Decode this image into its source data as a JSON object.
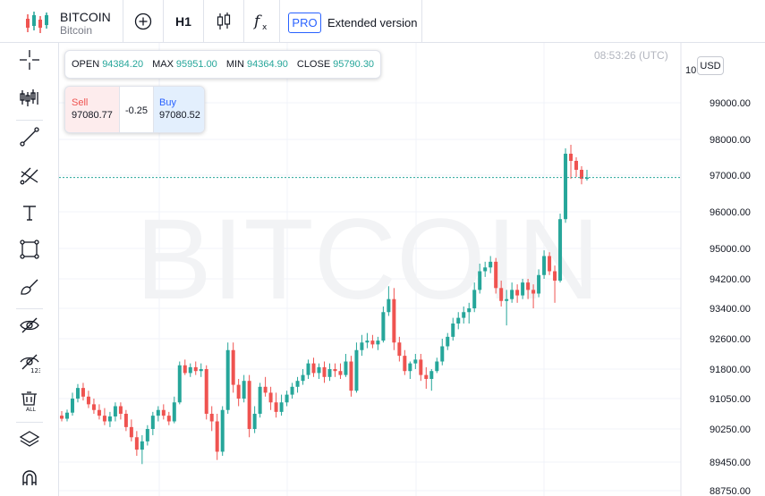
{
  "header": {
    "symbol_name": "BITCOIN",
    "symbol_desc": "Bitcoin",
    "interval": "H1",
    "pro_badge": "PRO",
    "extended_label": "Extended version"
  },
  "toolbar_icons": [
    "crosshair-icon",
    "indicators-icon",
    "trend-line-icon",
    "fib-retracement-icon",
    "text-icon",
    "rectangle-icon",
    "brush-icon",
    "hide-drawings-icon",
    "hide-indicators-icon",
    "remove-all-icon",
    "layers-icon",
    "magnet-icon"
  ],
  "ohlc": {
    "open_label": "OPEN",
    "open": "94384.20",
    "max_label": "MAX",
    "max": "95951.00",
    "min_label": "MIN",
    "min": "94364.90",
    "close_label": "CLOSE",
    "close": "95790.30"
  },
  "trade": {
    "sell_label": "Sell",
    "sell_price": "97080.77",
    "spread": "-0.25",
    "buy_label": "Buy",
    "buy_price": "97080.52"
  },
  "clock": "08:53:26 (UTC)",
  "currency": "USD",
  "watermark": "BITCOIN",
  "colors": {
    "up": "#26a69a",
    "down": "#ef5350",
    "price_line": "#26a69a",
    "grid": "#f0f3fa",
    "accent": "#2962ff"
  },
  "chart_data": {
    "type": "candlestick",
    "y_tick_labels": [
      "99000.00",
      "98000.00",
      "97000.00",
      "96000.00",
      "95000.00",
      "94200.00",
      "93400.00",
      "92600.00",
      "91800.00",
      "91050.00",
      "90250.00",
      "89450.00",
      "88750.00"
    ],
    "y_tick_values": [
      99000,
      98000,
      97000,
      96000,
      95000,
      94200,
      93400,
      92600,
      91800,
      91050,
      90250,
      89450,
      88750
    ],
    "partial_top_label": "10",
    "current_price": 96935,
    "candles": [
      [
        90600,
        90720,
        90450,
        90520
      ],
      [
        90520,
        90760,
        90450,
        90680
      ],
      [
        90680,
        91200,
        90600,
        91050
      ],
      [
        91050,
        91420,
        90950,
        91320
      ],
      [
        91320,
        91450,
        91000,
        91100
      ],
      [
        91100,
        91250,
        90800,
        90900
      ],
      [
        90900,
        91050,
        90650,
        90750
      ],
      [
        90750,
        90900,
        90500,
        90600
      ],
      [
        90600,
        90800,
        90350,
        90450
      ],
      [
        90450,
        90700,
        90300,
        90580
      ],
      [
        90580,
        90950,
        90450,
        90850
      ],
      [
        90850,
        90950,
        90500,
        90650
      ],
      [
        90650,
        90750,
        90200,
        90300
      ],
      [
        90300,
        90500,
        89950,
        90050
      ],
      [
        90050,
        90200,
        89600,
        89750
      ],
      [
        89750,
        90100,
        89400,
        89950
      ],
      [
        89950,
        90350,
        89850,
        90250
      ],
      [
        90250,
        90700,
        90100,
        90600
      ],
      [
        90600,
        90850,
        90450,
        90750
      ],
      [
        90750,
        90900,
        90500,
        90600
      ],
      [
        90600,
        90700,
        90350,
        90450
      ],
      [
        90450,
        91100,
        90400,
        90950
      ],
      [
        90950,
        92000,
        90900,
        91900
      ],
      [
        91900,
        92050,
        91650,
        91700
      ],
      [
        91700,
        91950,
        91600,
        91850
      ],
      [
        91850,
        92000,
        91650,
        91750
      ],
      [
        91750,
        91950,
        91600,
        91800
      ],
      [
        91800,
        91900,
        90500,
        90650
      ],
      [
        90650,
        90850,
        90200,
        90450
      ],
      [
        90450,
        90650,
        89500,
        89700
      ],
      [
        89700,
        90850,
        89600,
        90750
      ],
      [
        90750,
        92500,
        90650,
        92300
      ],
      [
        92300,
        92500,
        91200,
        91400
      ],
      [
        91400,
        91550,
        90850,
        91050
      ],
      [
        91050,
        91650,
        90950,
        91500
      ],
      [
        91500,
        91650,
        90050,
        90250
      ],
      [
        90250,
        90850,
        90150,
        90650
      ],
      [
        90650,
        91450,
        90550,
        91350
      ],
      [
        91350,
        91600,
        91100,
        91200
      ],
      [
        91200,
        91350,
        90750,
        90950
      ],
      [
        90950,
        91200,
        90550,
        90700
      ],
      [
        90700,
        91150,
        90600,
        90950
      ],
      [
        90950,
        91250,
        90850,
        91150
      ],
      [
        91150,
        91450,
        91050,
        91350
      ],
      [
        91350,
        91600,
        91200,
        91500
      ],
      [
        91500,
        91800,
        91400,
        91650
      ],
      [
        91650,
        92050,
        91550,
        91950
      ],
      [
        91950,
        92100,
        91600,
        91700
      ],
      [
        91700,
        91950,
        91550,
        91850
      ],
      [
        91850,
        92000,
        91450,
        91600
      ],
      [
        91600,
        91950,
        91500,
        91800
      ],
      [
        91800,
        91950,
        91600,
        91750
      ],
      [
        91750,
        91950,
        91550,
        91650
      ],
      [
        91650,
        92200,
        91600,
        92000
      ],
      [
        92000,
        92150,
        91100,
        91250
      ],
      [
        91250,
        92500,
        91200,
        92300
      ],
      [
        92300,
        92700,
        92150,
        92500
      ],
      [
        92500,
        92750,
        92350,
        92550
      ],
      [
        92550,
        92700,
        92350,
        92450
      ],
      [
        92450,
        92650,
        92300,
        92550
      ],
      [
        92550,
        93450,
        92500,
        93300
      ],
      [
        93300,
        94000,
        93200,
        93650
      ],
      [
        93650,
        93950,
        92300,
        92500
      ],
      [
        92500,
        92650,
        92000,
        92150
      ],
      [
        92150,
        92300,
        91650,
        91750
      ],
      [
        91750,
        92000,
        91550,
        91950
      ],
      [
        91950,
        92200,
        91800,
        92050
      ],
      [
        92050,
        92200,
        91500,
        91650
      ],
      [
        91650,
        91850,
        91300,
        91550
      ],
      [
        91550,
        91800,
        91250,
        91750
      ],
      [
        91750,
        92100,
        91700,
        92000
      ],
      [
        92000,
        92600,
        91900,
        92400
      ],
      [
        92400,
        92750,
        92300,
        92650
      ],
      [
        92650,
        93150,
        92550,
        93000
      ],
      [
        93000,
        93300,
        92850,
        93150
      ],
      [
        93150,
        93450,
        93000,
        93300
      ],
      [
        93300,
        93550,
        93000,
        93400
      ],
      [
        93400,
        94100,
        93300,
        93900
      ],
      [
        93900,
        94600,
        93800,
        94400
      ],
      [
        94400,
        94650,
        94250,
        94500
      ],
      [
        94500,
        94800,
        94350,
        94650
      ],
      [
        94650,
        94750,
        93800,
        93950
      ],
      [
        93950,
        94150,
        93450,
        93600
      ],
      [
        93600,
        93900,
        92950,
        93650
      ],
      [
        93650,
        94100,
        93550,
        93900
      ],
      [
        93900,
        94050,
        93550,
        93750
      ],
      [
        93750,
        94200,
        93650,
        94100
      ],
      [
        94100,
        94200,
        93650,
        93900
      ],
      [
        93900,
        94050,
        93400,
        93800
      ],
      [
        93800,
        94450,
        93700,
        94300
      ],
      [
        94300,
        94950,
        94200,
        94800
      ],
      [
        94800,
        94900,
        94300,
        94400
      ],
      [
        94400,
        94550,
        93550,
        94150
      ],
      [
        94150,
        95950,
        94100,
        95800
      ],
      [
        95800,
        97750,
        95700,
        97600
      ],
      [
        97600,
        97850,
        96900,
        97400
      ],
      [
        97400,
        97500,
        96950,
        97150
      ],
      [
        97150,
        97250,
        96750,
        96900
      ],
      [
        96900,
        97150,
        96850,
        96935
      ]
    ]
  }
}
